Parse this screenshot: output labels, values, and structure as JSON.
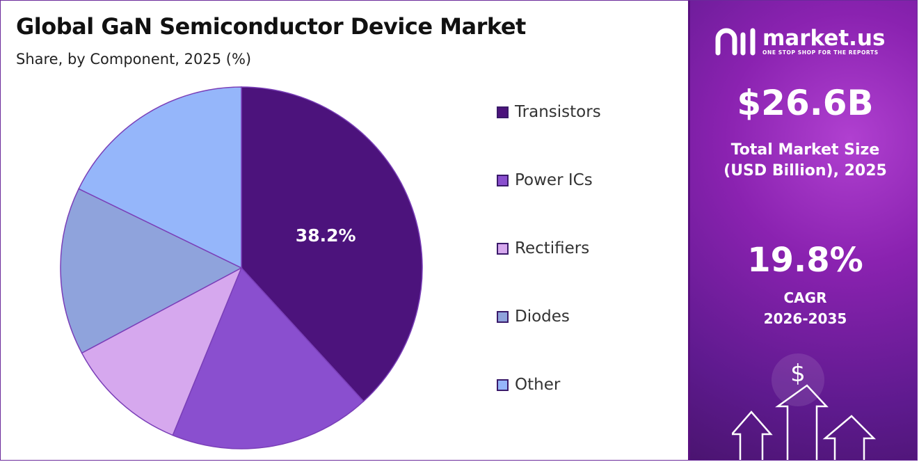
{
  "header": {
    "title": "Global GaN Semiconductor Device Market",
    "subtitle": "Share, by Component, 2025 (%)"
  },
  "chart_data": {
    "type": "pie",
    "categories": [
      "Transistors",
      "Power ICs",
      "Rectifiers",
      "Diodes",
      "Other"
    ],
    "values": [
      38.2,
      18.0,
      11.0,
      15.0,
      17.8
    ],
    "colors": [
      "#4c137c",
      "#8a4fcf",
      "#d6a8ee",
      "#8fa3dc",
      "#95b6fa"
    ],
    "data_labels": [
      "38.2%",
      "",
      "",
      "",
      ""
    ],
    "legend_position": "right",
    "start_angle": "top, clockwise"
  },
  "sidebar": {
    "brand_name": "market.us",
    "brand_tagline": "ONE STOP SHOP FOR THE REPORTS",
    "market_size_value": "$26.6B",
    "market_size_label_1": "Total Market Size",
    "market_size_label_2": "(USD Billion), 2025",
    "cagr_value": "19.8%",
    "cagr_label_1": "CAGR",
    "cagr_label_2": "2026-2035",
    "deco_symbol": "$"
  }
}
